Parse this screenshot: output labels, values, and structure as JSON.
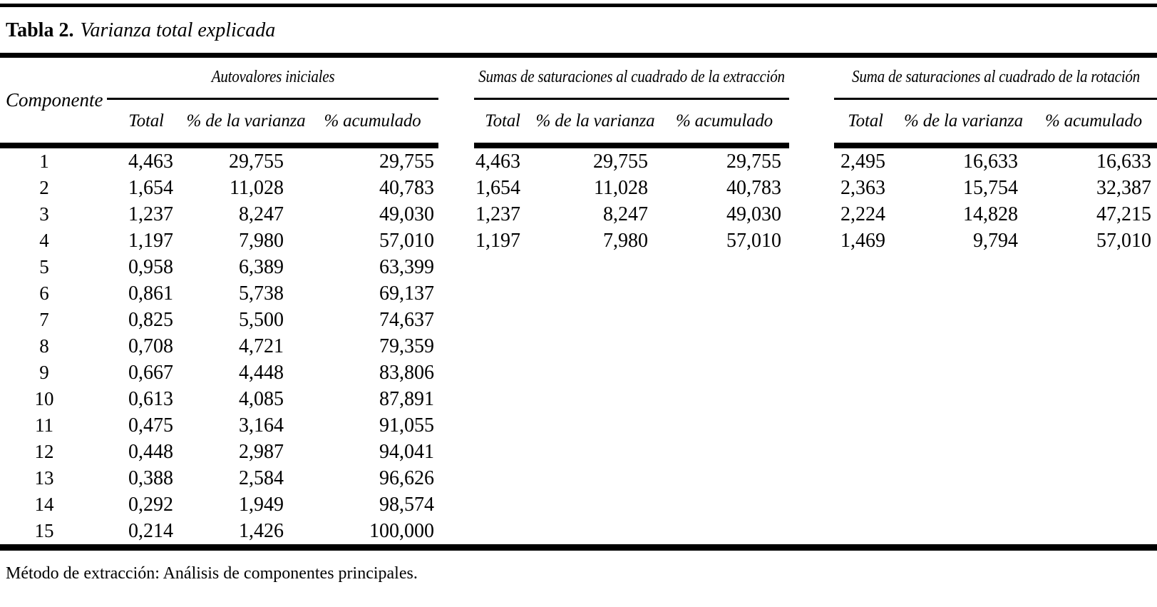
{
  "title": {
    "label": "Tabla 2.",
    "caption": "Varianza total explicada"
  },
  "table": {
    "row_header": "Componente",
    "groups": [
      {
        "label": "Autovalores iniciales",
        "columns": [
          "Total",
          "% de la varianza",
          "% acumulado"
        ]
      },
      {
        "label": "Sumas de saturaciones al cuadrado de la extracción",
        "columns": [
          "Total",
          "% de la varianza",
          "% acumulado"
        ]
      },
      {
        "label": "Suma de saturaciones al cuadrado de la rotación",
        "columns": [
          "Total",
          "% de la varianza",
          "% acumulado"
        ]
      }
    ],
    "rows": [
      [
        "1",
        "4,463",
        "29,755",
        "29,755",
        "4,463",
        "29,755",
        "29,755",
        "2,495",
        "16,633",
        "16,633"
      ],
      [
        "2",
        "1,654",
        "11,028",
        "40,783",
        "1,654",
        "11,028",
        "40,783",
        "2,363",
        "15,754",
        "32,387"
      ],
      [
        "3",
        "1,237",
        "8,247",
        "49,030",
        "1,237",
        "8,247",
        "49,030",
        "2,224",
        "14,828",
        "47,215"
      ],
      [
        "4",
        "1,197",
        "7,980",
        "57,010",
        "1,197",
        "7,980",
        "57,010",
        "1,469",
        "9,794",
        "57,010"
      ],
      [
        "5",
        "0,958",
        "6,389",
        "63,399",
        "",
        "",
        "",
        "",
        "",
        ""
      ],
      [
        "6",
        "0,861",
        "5,738",
        "69,137",
        "",
        "",
        "",
        "",
        "",
        ""
      ],
      [
        "7",
        "0,825",
        "5,500",
        "74,637",
        "",
        "",
        "",
        "",
        "",
        ""
      ],
      [
        "8",
        "0,708",
        "4,721",
        "79,359",
        "",
        "",
        "",
        "",
        "",
        ""
      ],
      [
        "9",
        "0,667",
        "4,448",
        "83,806",
        "",
        "",
        "",
        "",
        "",
        ""
      ],
      [
        "10",
        "0,613",
        "4,085",
        "87,891",
        "",
        "",
        "",
        "",
        "",
        ""
      ],
      [
        "11",
        "0,475",
        "3,164",
        "91,055",
        "",
        "",
        "",
        "",
        "",
        ""
      ],
      [
        "12",
        "0,448",
        "2,987",
        "94,041",
        "",
        "",
        "",
        "",
        "",
        ""
      ],
      [
        "13",
        "0,388",
        "2,584",
        "96,626",
        "",
        "",
        "",
        "",
        "",
        ""
      ],
      [
        "14",
        "0,292",
        "1,949",
        "98,574",
        "",
        "",
        "",
        "",
        "",
        ""
      ],
      [
        "15",
        "0,214",
        "1,426",
        "100,000",
        "",
        "",
        "",
        "",
        "",
        ""
      ]
    ]
  },
  "footnote": "Método de extracción: Análisis de componentes principales.",
  "colors": {
    "text": "#000000",
    "rule": "#000000",
    "background": "#ffffff"
  }
}
